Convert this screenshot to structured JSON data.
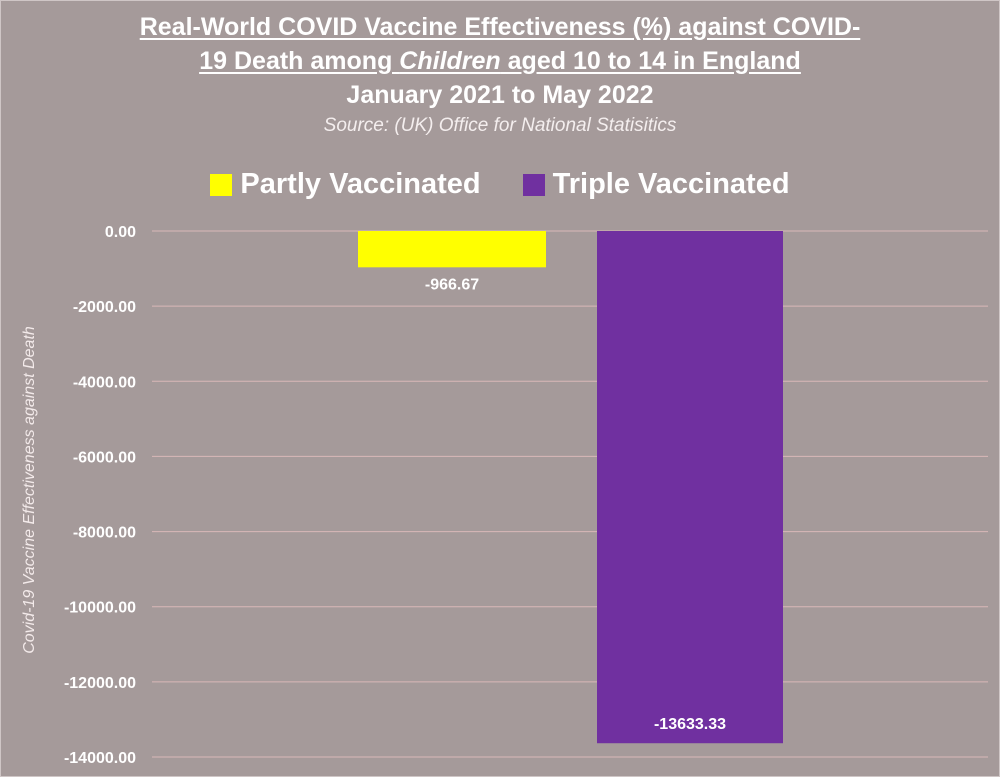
{
  "header": {
    "title_line1": "Real-World COVID Vaccine Effectiveness (%) against COVID-",
    "title_line2_a": "19 Death among ",
    "title_line2_b": "Children",
    "title_line2_c": " aged 10 to 14 in England",
    "title_line3": "January 2021 to May 2022",
    "source": "Source: (UK) Office for National Statisitics"
  },
  "colors": {
    "background": "#a59a9a",
    "partly": "#ffff00",
    "triple": "#7030a0",
    "gridline": "#d9b8b8"
  },
  "chart_data": {
    "type": "bar",
    "title": "Real-World COVID Vaccine Effectiveness (%) against COVID-19 Death among Children aged 10 to 14 in England",
    "subtitle": "January 2021 to May 2022",
    "ylabel": "Covid-19 Vaccine Effectiveness against Death",
    "xlabel": "",
    "ylim": [
      -14000,
      0
    ],
    "yticks": [
      0,
      -2000,
      -4000,
      -6000,
      -8000,
      -10000,
      -12000,
      -14000
    ],
    "ytick_labels": [
      "0.00",
      "-2000.00",
      "-4000.00",
      "-6000.00",
      "-8000.00",
      "-10000.00",
      "-12000.00",
      "-14000.00"
    ],
    "grid": true,
    "legend_position": "top",
    "series": [
      {
        "name": "Partly Vaccinated",
        "value": -966.67,
        "label": "-966.67",
        "color": "#ffff00"
      },
      {
        "name": "Triple Vaccinated",
        "value": -13633.33,
        "label": "-13633.33",
        "color": "#7030a0"
      }
    ]
  }
}
